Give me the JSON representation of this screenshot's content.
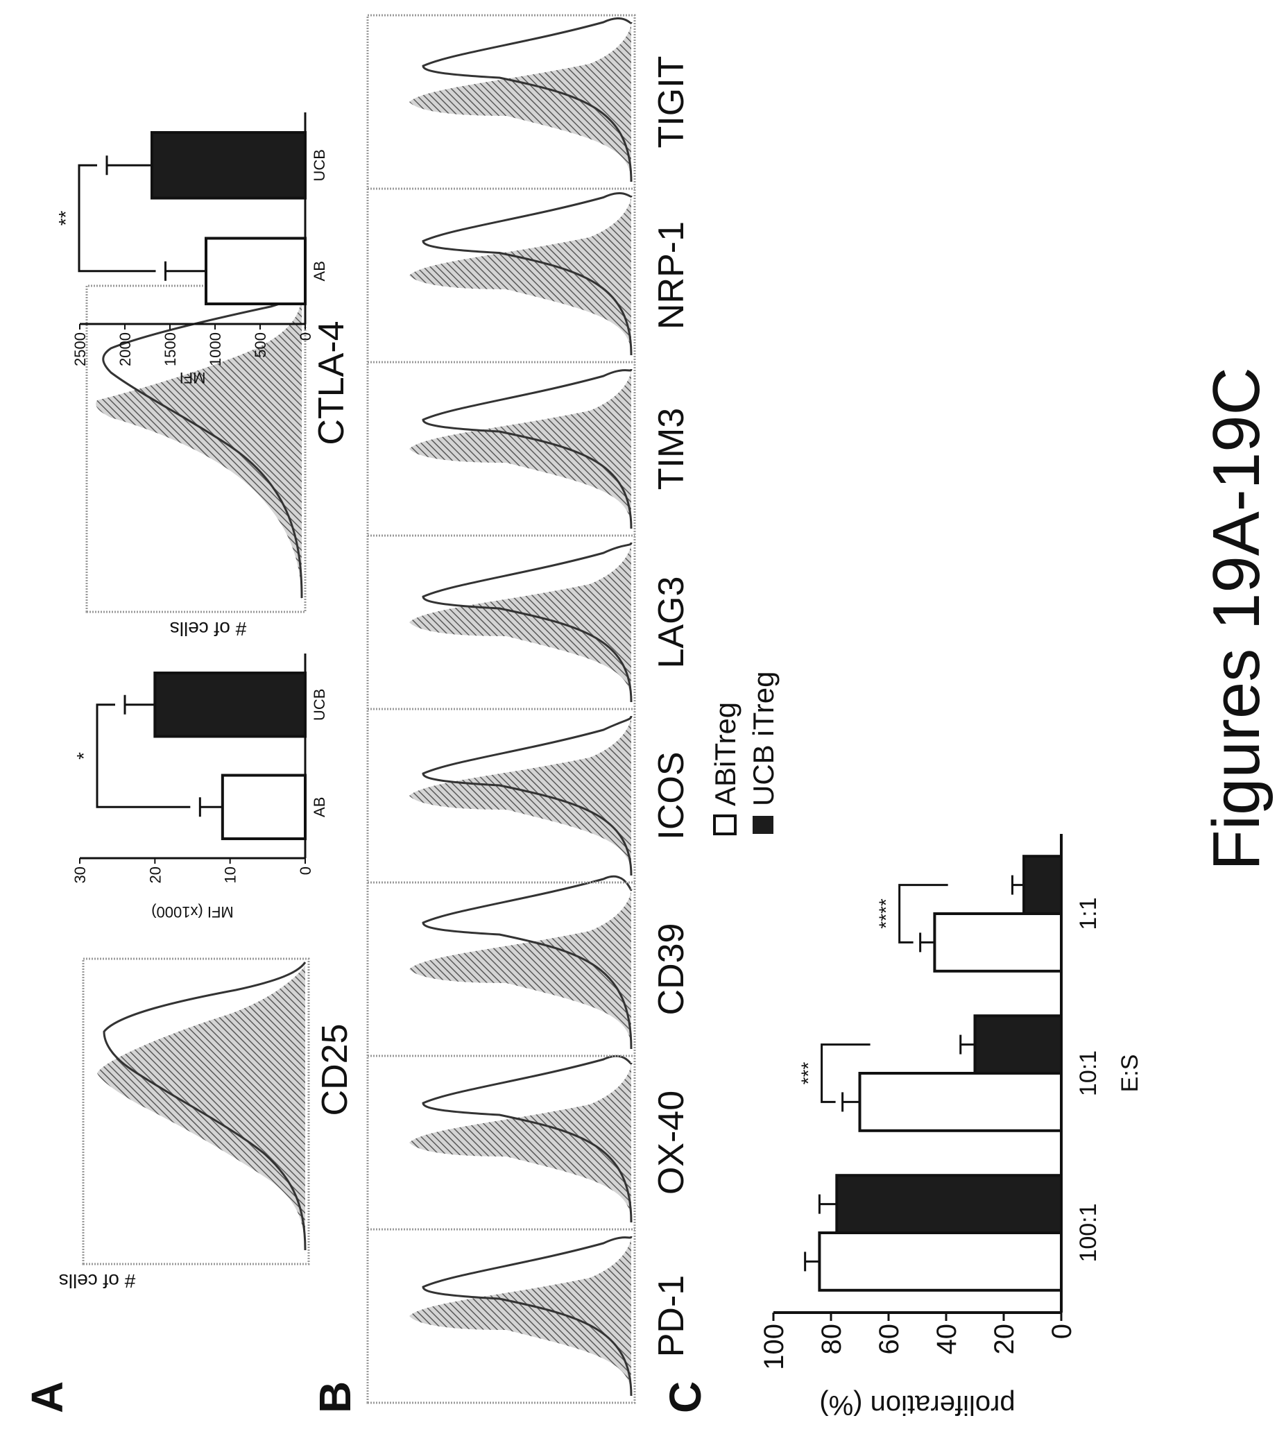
{
  "figure_title": "Figures 19A-19C",
  "panel_letters": {
    "a": "A",
    "b": "B",
    "c": "C"
  },
  "histogram_ylabel": "# of cells",
  "fills": {
    "hatch": "#9a9a9a",
    "dark": "#1c1c1c",
    "white": "#ffffff",
    "frame": "#999999"
  },
  "panel_a": {
    "cd25_label": "CD25",
    "ctla4_label": "CTLA-4",
    "mfi_cd25_ylabel": "MFI (x1000)",
    "mfi_ctla4_ylabel": "MFI"
  },
  "panel_b_markers": [
    "PD-1",
    "OX-40",
    "CD39",
    "ICOS",
    "LAG3",
    "TIM3",
    "NRP-1",
    "TIGIT"
  ],
  "chart_data": [
    {
      "id": "a-mfi-cd25",
      "type": "bar",
      "categories": [
        "AB",
        "UCB"
      ],
      "values": [
        11,
        20
      ],
      "errors": [
        3,
        4
      ],
      "ylabel": "MFI (x1000)",
      "yticks": [
        "0",
        "10",
        "20",
        "30"
      ],
      "ylim": [
        0,
        30
      ],
      "significance": "*"
    },
    {
      "id": "a-mfi-ctla4",
      "type": "bar",
      "categories": [
        "AB",
        "UCB"
      ],
      "values": [
        1100,
        1700
      ],
      "errors": [
        450,
        500
      ],
      "ylabel": "MFI",
      "yticks": [
        "0",
        "500",
        "1000",
        "1500",
        "2000",
        "2500"
      ],
      "ylim": [
        0,
        2500
      ],
      "significance": "**"
    },
    {
      "id": "c-proliferation",
      "type": "bar",
      "categories": [
        "100:1",
        "10:1",
        "1:1"
      ],
      "series": [
        {
          "name": "ABiTreg",
          "values": [
            84,
            70,
            44
          ],
          "errors": [
            5,
            6,
            5
          ]
        },
        {
          "name": "UCB iTreg",
          "values": [
            78,
            30,
            13
          ],
          "errors": [
            6,
            5,
            4
          ]
        }
      ],
      "significance": [
        "",
        "***",
        "****"
      ],
      "xlabel": "E:S",
      "ylabel": "proliferation (%)",
      "yticks": [
        "0",
        "20",
        "40",
        "60",
        "80",
        "100"
      ],
      "ylim": [
        0,
        100
      ]
    }
  ]
}
